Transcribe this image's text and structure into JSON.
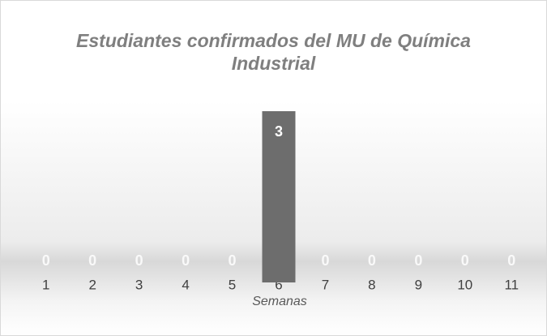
{
  "chart_data": {
    "type": "bar",
    "title": "Estudiantes confirmados del MU de Química Industrial",
    "x_label": "Semanas",
    "categories": [
      "1",
      "2",
      "3",
      "4",
      "5",
      "6",
      "7",
      "8",
      "9",
      "10",
      "11"
    ],
    "values": [
      0,
      0,
      0,
      0,
      0,
      3,
      0,
      0,
      0,
      0,
      0
    ],
    "color": "#6d6d6d",
    "ylim": [
      0,
      3
    ]
  }
}
